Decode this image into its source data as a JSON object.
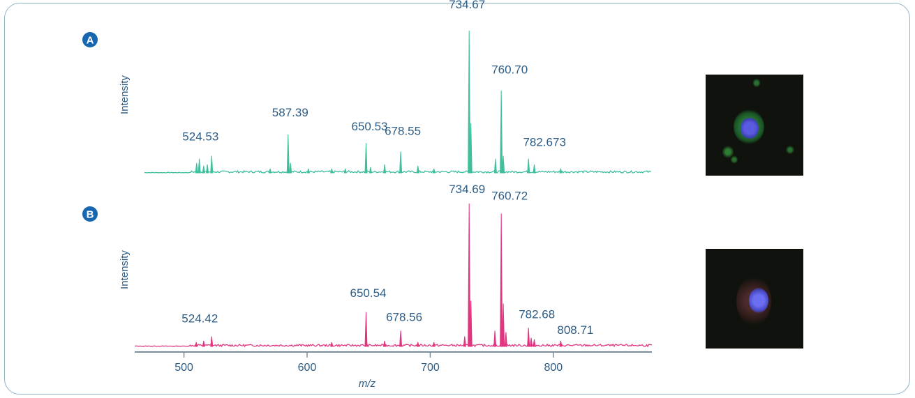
{
  "panels": {
    "a": {
      "label": "A"
    },
    "b": {
      "label": "B"
    }
  },
  "colors": {
    "border": "#8fb3c7",
    "badge": "#1766b0",
    "label_text": "#2d5c85",
    "series_a": "#3fbf9c",
    "series_b": "#e0357f",
    "axis": "#7c8e9a"
  },
  "chart_data": [
    {
      "type": "line",
      "panel": "A",
      "ylabel": "Intensity",
      "xlim": [
        460,
        880
      ],
      "ylim": [
        0,
        100
      ],
      "peaks": [
        {
          "x": 510.3,
          "y": 7
        },
        {
          "x": 512.5,
          "y": 10
        },
        {
          "x": 516.0,
          "y": 5
        },
        {
          "x": 519.0,
          "y": 6
        },
        {
          "x": 522.5,
          "y": 12
        },
        {
          "x": 570.0,
          "y": 3
        },
        {
          "x": 584.6,
          "y": 27
        },
        {
          "x": 586.5,
          "y": 7
        },
        {
          "x": 601.0,
          "y": 3
        },
        {
          "x": 620.0,
          "y": 3
        },
        {
          "x": 631.0,
          "y": 3
        },
        {
          "x": 647.9,
          "y": 21
        },
        {
          "x": 651.5,
          "y": 4
        },
        {
          "x": 663.0,
          "y": 6
        },
        {
          "x": 676.0,
          "y": 15
        },
        {
          "x": 690.0,
          "y": 5
        },
        {
          "x": 703.0,
          "y": 3
        },
        {
          "x": 731.6,
          "y": 100
        },
        {
          "x": 733.0,
          "y": 35
        },
        {
          "x": 753.0,
          "y": 10
        },
        {
          "x": 757.7,
          "y": 58
        },
        {
          "x": 759.3,
          "y": 12
        },
        {
          "x": 779.8,
          "y": 10
        },
        {
          "x": 784.5,
          "y": 6
        },
        {
          "x": 806.0,
          "y": 3
        }
      ],
      "annotations": [
        {
          "text": "734.67",
          "x": 731.6
        },
        {
          "text": "760.70",
          "x": 757.7
        },
        {
          "text": "587.39",
          "x": 584.6
        },
        {
          "text": "650.53",
          "x": 647.9
        },
        {
          "text": "678.55",
          "x": 676.0
        },
        {
          "text": "524.53",
          "x": 522.5
        },
        {
          "text": "782.673",
          "x": 779.8
        }
      ]
    },
    {
      "type": "line",
      "panel": "B",
      "ylabel": "Intensity",
      "xlabel": "m/z",
      "xlim": [
        460,
        880
      ],
      "ylim": [
        0,
        100
      ],
      "xticks": [
        500,
        600,
        700,
        800
      ],
      "peaks": [
        {
          "x": 510.0,
          "y": 3
        },
        {
          "x": 516.0,
          "y": 4
        },
        {
          "x": 522.5,
          "y": 7
        },
        {
          "x": 620.0,
          "y": 3
        },
        {
          "x": 647.9,
          "y": 24
        },
        {
          "x": 663.0,
          "y": 4
        },
        {
          "x": 676.0,
          "y": 11
        },
        {
          "x": 690.0,
          "y": 3
        },
        {
          "x": 703.0,
          "y": 3
        },
        {
          "x": 728.0,
          "y": 7
        },
        {
          "x": 731.6,
          "y": 100
        },
        {
          "x": 733.0,
          "y": 32
        },
        {
          "x": 752.5,
          "y": 11
        },
        {
          "x": 757.7,
          "y": 93
        },
        {
          "x": 759.3,
          "y": 30
        },
        {
          "x": 761.5,
          "y": 10
        },
        {
          "x": 779.8,
          "y": 13
        },
        {
          "x": 782.0,
          "y": 6
        },
        {
          "x": 784.5,
          "y": 5
        },
        {
          "x": 806.0,
          "y": 4
        }
      ],
      "annotations": [
        {
          "text": "734.69",
          "x": 731.6
        },
        {
          "text": "760.72",
          "x": 757.7
        },
        {
          "text": "650.54",
          "x": 647.9
        },
        {
          "text": "678.56",
          "x": 676.0
        },
        {
          "text": "524.42",
          "x": 522.5
        },
        {
          "text": "782.68",
          "x": 779.8
        },
        {
          "text": "808.71",
          "x": 806.0
        }
      ]
    }
  ],
  "thumbnails": [
    {
      "panel": "A",
      "description_icon": "cell-micrograph-green"
    },
    {
      "panel": "B",
      "description_icon": "cell-micrograph-red"
    }
  ]
}
